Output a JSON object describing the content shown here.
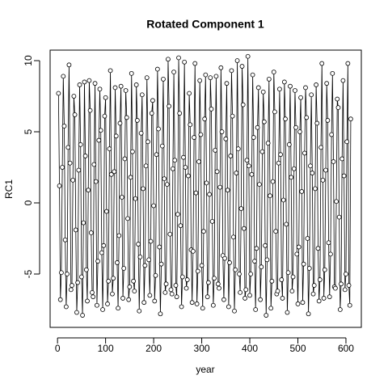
{
  "chart_data": {
    "type": "line",
    "title": "Rotated Component 1",
    "x_label": "year",
    "y_label": "RC1",
    "markers": true,
    "color": "#000000",
    "xlim": [
      -15.4,
      632
    ],
    "ylim": [
      -8.75,
      10.74
    ],
    "xticks": [
      0,
      100,
      200,
      300,
      400,
      500,
      600
    ],
    "yticks": [
      -5,
      0,
      5,
      10
    ],
    "x": [
      2,
      4,
      6,
      8,
      10,
      12,
      14,
      16,
      18,
      20,
      22,
      24,
      26,
      28,
      30,
      32,
      34,
      36,
      38,
      40,
      42,
      44,
      46,
      48,
      50,
      52,
      54,
      56,
      58,
      60,
      62,
      64,
      66,
      68,
      70,
      72,
      74,
      76,
      78,
      80,
      82,
      84,
      86,
      88,
      90,
      92,
      94,
      96,
      98,
      100,
      102,
      104,
      106,
      108,
      110,
      112,
      114,
      116,
      118,
      120,
      122,
      124,
      126,
      128,
      130,
      132,
      134,
      136,
      138,
      140,
      142,
      144,
      146,
      148,
      150,
      152,
      154,
      156,
      158,
      160,
      162,
      164,
      166,
      168,
      170,
      172,
      174,
      176,
      178,
      180,
      182,
      184,
      186,
      188,
      190,
      192,
      194,
      196,
      198,
      200,
      202,
      204,
      206,
      208,
      210,
      212,
      214,
      216,
      218,
      220,
      222,
      224,
      226,
      228,
      230,
      232,
      234,
      236,
      238,
      240,
      242,
      244,
      246,
      248,
      250,
      252,
      254,
      256,
      258,
      260,
      262,
      264,
      266,
      268,
      270,
      272,
      274,
      276,
      278,
      280,
      282,
      284,
      286,
      288,
      290,
      292,
      294,
      296,
      298,
      300,
      302,
      304,
      306,
      308,
      310,
      312,
      314,
      316,
      318,
      320,
      322,
      324,
      326,
      328,
      330,
      332,
      334,
      336,
      338,
      340,
      342,
      344,
      346,
      348,
      350,
      352,
      354,
      356,
      358,
      360,
      362,
      364,
      366,
      368,
      370,
      372,
      374,
      376,
      378,
      380,
      382,
      384,
      386,
      388,
      390,
      392,
      394,
      396,
      398,
      400,
      402,
      404,
      406,
      408,
      410,
      412,
      414,
      416,
      418,
      420,
      422,
      424,
      426,
      428,
      430,
      432,
      434,
      436,
      438,
      440,
      442,
      444,
      446,
      448,
      450,
      452,
      454,
      456,
      458,
      460,
      462,
      464,
      466,
      468,
      470,
      472,
      474,
      476,
      478,
      480,
      482,
      484,
      486,
      488,
      490,
      492,
      494,
      496,
      498,
      500,
      502,
      504,
      506,
      508,
      510,
      512,
      514,
      516,
      518,
      520,
      522,
      524,
      526,
      528,
      530,
      532,
      534,
      536,
      538,
      540,
      542,
      544,
      546,
      548,
      550,
      552,
      554,
      556,
      558,
      560,
      562,
      564,
      566,
      568,
      570,
      572,
      574,
      576,
      578,
      580,
      582,
      584,
      586,
      588,
      590,
      592,
      594,
      596,
      598,
      600,
      602,
      604,
      606,
      608,
      610
    ],
    "values": [
      7.7,
      1.2,
      -6.8,
      -4.9,
      2.5,
      8.9,
      5.4,
      -2.6,
      -7.3,
      -5.0,
      3.9,
      9.7,
      2.8,
      -6.1,
      -5.8,
      1.6,
      7.5,
      6.2,
      -1.9,
      -7.7,
      -5.6,
      2.3,
      8.3,
      4.1,
      -5.2,
      -7.9,
      -1.4,
      8.5,
      3.3,
      -4.7,
      -6.9,
      0.9,
      8.6,
      6.5,
      -2.1,
      -6.3,
      -6.6,
      2.7,
      8.4,
      1.5,
      -7.2,
      -4.1,
      4.4,
      8.0,
      5.1,
      -3.5,
      -7.5,
      -3.0,
      6.1,
      7.4,
      -0.6,
      -7.1,
      -5.5,
      3.8,
      9.3,
      2.0,
      -6.4,
      -5.3,
      2.2,
      8.1,
      4.7,
      -4.2,
      -7.4,
      -2.3,
      5.6,
      8.2,
      0.4,
      -6.7,
      -4.6,
      3.1,
      7.9,
      6.0,
      -1.1,
      -6.8,
      -5.9,
      1.8,
      9.1,
      3.6,
      -5.5,
      -6.2,
      0.3,
      8.3,
      5.8,
      -2.9,
      -7.6,
      -3.8,
      4.9,
      7.6,
      1.0,
      -7.0,
      -4.4,
      2.6,
      8.8,
      4.3,
      -4.0,
      -6.5,
      -2.7,
      6.3,
      7.2,
      -0.2,
      -6.9,
      -5.1,
      3.4,
      9.4,
      5.2,
      -3.1,
      -7.8,
      -4.3,
      4.0,
      8.7,
      1.7,
      -6.3,
      -5.7,
      1.3,
      10.1,
      6.8,
      -2.2,
      -6.1,
      -6.4,
      2.4,
      9.2,
      3.0,
      -5.8,
      -6.6,
      -0.8,
      10.2,
      6.3,
      -1.6,
      -7.3,
      -5.2,
      3.2,
      9.9,
      2.5,
      -6.0,
      -5.4,
      1.9,
      7.7,
      5.5,
      -3.3,
      -7.0,
      -3.4,
      4.6,
      9.8,
      0.7,
      -7.1,
      -4.8,
      2.9,
      8.6,
      4.8,
      -4.4,
      -7.4,
      -2.0,
      5.9,
      9.0,
      1.4,
      -6.6,
      -5.6,
      0.6,
      8.8,
      6.6,
      -1.3,
      -7.2,
      -5.3,
      3.7,
      8.9,
      2.2,
      -5.7,
      -6.0,
      1.1,
      9.5,
      5.0,
      -3.7,
      -6.8,
      -3.9,
      4.5,
      8.4,
      0.9,
      -7.3,
      -4.2,
      3.3,
      9.3,
      6.1,
      -2.4,
      -7.6,
      -4.7,
      2.1,
      10.0,
      3.8,
      -5.0,
      -6.3,
      -0.4,
      9.6,
      6.9,
      -1.8,
      -6.7,
      -6.1,
      3.0,
      10.3,
      2.6,
      -6.5,
      -5.0,
      2.0,
      9.0,
      4.6,
      -4.1,
      -7.5,
      -3.2,
      5.3,
      8.1,
      1.3,
      -6.8,
      -4.5,
      3.6,
      7.8,
      5.7,
      -3.0,
      -7.9,
      -4.0,
      4.2,
      8.7,
      0.5,
      -7.4,
      -5.5,
      1.5,
      9.2,
      6.4,
      -2.0,
      -6.4,
      -6.2,
      2.8,
      8.0,
      3.4,
      -5.4,
      -6.7,
      0.2,
      8.5,
      5.9,
      -1.5,
      -7.7,
      -4.9,
      4.1,
      8.2,
      1.8,
      -6.2,
      -5.2,
      2.4,
      7.9,
      5.3,
      -3.6,
      -7.1,
      -3.1,
      5.0,
      7.4,
      0.8,
      -7.0,
      -4.3,
      3.5,
      8.1,
      6.0,
      -2.5,
      -7.8,
      -4.6,
      2.6,
      7.6,
      2.1,
      -6.4,
      -5.8,
      1.0,
      8.3,
      5.6,
      -3.2,
      -6.9,
      -5.4,
      3.9,
      9.8,
      1.6,
      -6.7,
      -4.7,
      2.3,
      8.4,
      5.8,
      -2.8,
      -6.6,
      -3.6,
      4.8,
      9.1,
      2.9,
      -5.9,
      -6.0,
      0.1,
      7.3,
      6.7,
      -1.0,
      -7.5,
      -5.7,
      3.1,
      8.6,
      1.9,
      -6.1,
      -5.0,
      4.3,
      9.8,
      -5.8,
      -7.2,
      5.9
    ]
  }
}
